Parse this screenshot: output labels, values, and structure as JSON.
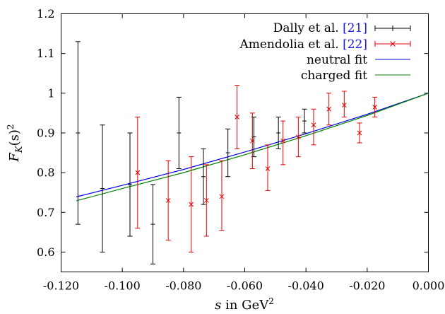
{
  "chart_data": {
    "type": "scatter",
    "xlabel": {
      "var": "s",
      "text": " in GeV",
      "sup": "2"
    },
    "ylabel": {
      "main": "F",
      "sub": "K",
      "rest": "(s)",
      "sup": "2"
    },
    "xlim": [
      -0.12,
      0.0
    ],
    "ylim": [
      0.55,
      1.2
    ],
    "x_ticks": [
      -0.12,
      -0.1,
      -0.08,
      -0.06,
      -0.04,
      -0.02,
      0.0
    ],
    "x_tick_labels": [
      "-0.120",
      "-0.100",
      "-0.080",
      "-0.060",
      "-0.040",
      "-0.020",
      "0.000"
    ],
    "y_ticks": [
      0.6,
      0.7,
      0.8,
      0.9,
      1.0,
      1.1,
      1.2
    ],
    "y_tick_labels": [
      "0.6",
      "0.7",
      "0.8",
      "0.9",
      "1",
      "1.1",
      "1.2"
    ],
    "grid": false,
    "legend_position": "top-right",
    "legend": [
      {
        "label": "Dally et al. ",
        "ref": "[21]",
        "marker": "plus",
        "color": "#000000"
      },
      {
        "label": "Amendolia et al. ",
        "ref": "[22]",
        "marker": "cross",
        "color": "#e60000"
      },
      {
        "label": "neutral fit",
        "ref": "",
        "marker": "line",
        "color": "#0000e6"
      },
      {
        "label": "charged fit",
        "ref": "",
        "marker": "line",
        "color": "#008000"
      }
    ],
    "series": [
      {
        "name": "Dally et al. [21]",
        "color": "#000000",
        "marker": "plus",
        "points": [
          {
            "x": -0.1145,
            "y": 0.9,
            "ylo": 0.67,
            "yhi": 1.13
          },
          {
            "x": -0.1065,
            "y": 0.76,
            "ylo": 0.6,
            "yhi": 0.92
          },
          {
            "x": -0.0975,
            "y": 0.77,
            "ylo": 0.64,
            "yhi": 0.9
          },
          {
            "x": -0.09,
            "y": 0.67,
            "ylo": 0.57,
            "yhi": 0.77
          },
          {
            "x": -0.0815,
            "y": 0.9,
            "ylo": 0.81,
            "yhi": 0.99
          },
          {
            "x": -0.0735,
            "y": 0.79,
            "ylo": 0.72,
            "yhi": 0.86
          },
          {
            "x": -0.0655,
            "y": 0.85,
            "ylo": 0.79,
            "yhi": 0.91
          },
          {
            "x": -0.057,
            "y": 0.89,
            "ylo": 0.84,
            "yhi": 0.94
          },
          {
            "x": -0.049,
            "y": 0.9,
            "ylo": 0.86,
            "yhi": 0.94
          },
          {
            "x": -0.0405,
            "y": 0.93,
            "ylo": 0.9,
            "yhi": 0.96
          }
        ]
      },
      {
        "name": "Amendolia et al. [22]",
        "color": "#e60000",
        "marker": "cross",
        "points": [
          {
            "x": -0.095,
            "y": 0.8,
            "ylo": 0.66,
            "yhi": 0.94
          },
          {
            "x": -0.085,
            "y": 0.73,
            "ylo": 0.63,
            "yhi": 0.83
          },
          {
            "x": -0.0775,
            "y": 0.72,
            "ylo": 0.6,
            "yhi": 0.84
          },
          {
            "x": -0.0725,
            "y": 0.73,
            "ylo": 0.64,
            "yhi": 0.82
          },
          {
            "x": -0.0675,
            "y": 0.74,
            "ylo": 0.655,
            "yhi": 0.83
          },
          {
            "x": -0.0625,
            "y": 0.94,
            "ylo": 0.86,
            "yhi": 1.02
          },
          {
            "x": -0.0575,
            "y": 0.88,
            "ylo": 0.81,
            "yhi": 0.95
          },
          {
            "x": -0.0525,
            "y": 0.81,
            "ylo": 0.755,
            "yhi": 0.87
          },
          {
            "x": -0.0475,
            "y": 0.88,
            "ylo": 0.82,
            "yhi": 0.93
          },
          {
            "x": -0.0425,
            "y": 0.89,
            "ylo": 0.84,
            "yhi": 0.94
          },
          {
            "x": -0.0375,
            "y": 0.92,
            "ylo": 0.87,
            "yhi": 0.96
          },
          {
            "x": -0.0325,
            "y": 0.96,
            "ylo": 0.92,
            "yhi": 1.0
          },
          {
            "x": -0.0275,
            "y": 0.97,
            "ylo": 0.94,
            "yhi": 1.005
          },
          {
            "x": -0.0225,
            "y": 0.9,
            "ylo": 0.875,
            "yhi": 0.925
          },
          {
            "x": -0.0175,
            "y": 0.965,
            "ylo": 0.94,
            "yhi": 0.99
          }
        ]
      },
      {
        "name": "neutral fit",
        "color": "#0000e6",
        "marker": "line",
        "x": [
          -0.115,
          -0.1,
          -0.08,
          -0.06,
          -0.04,
          -0.02,
          0.0
        ],
        "y": [
          0.739,
          0.768,
          0.808,
          0.852,
          0.898,
          0.947,
          1.0
        ]
      },
      {
        "name": "charged fit",
        "color": "#008000",
        "marker": "line",
        "x": [
          -0.115,
          -0.1,
          -0.08,
          -0.06,
          -0.04,
          -0.02,
          0.0
        ],
        "y": [
          0.729,
          0.76,
          0.8,
          0.845,
          0.893,
          0.944,
          1.0
        ]
      }
    ]
  }
}
